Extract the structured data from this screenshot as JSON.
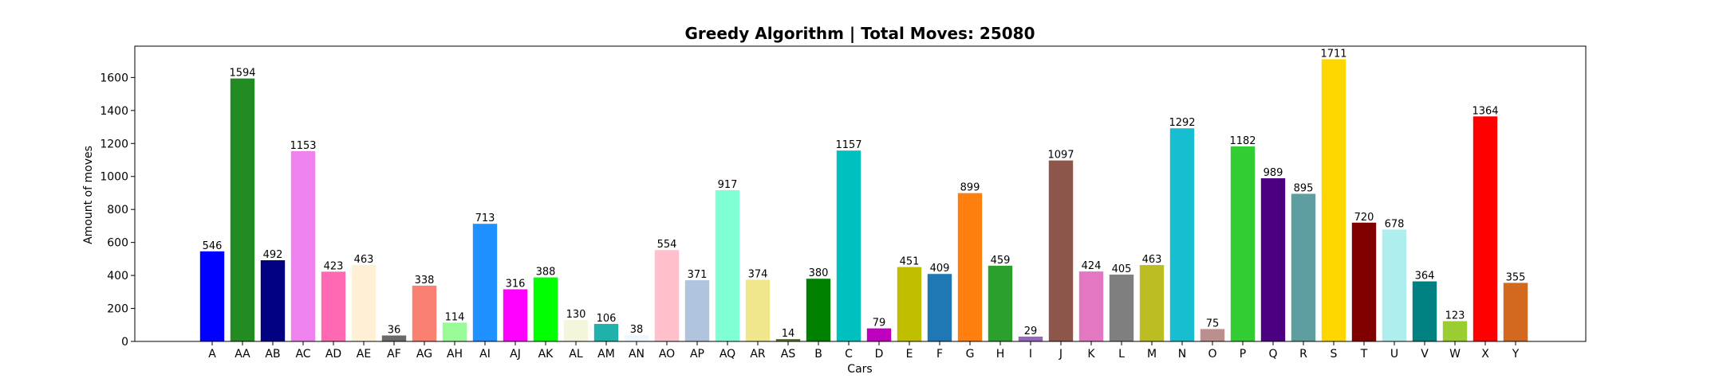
{
  "chart_data": {
    "type": "bar",
    "title": "Greedy Algorithm | Total Moves: 25080",
    "xlabel": "Cars",
    "ylabel": "Amount of moves",
    "ylim": [
      0,
      1790
    ],
    "yticks": [
      0,
      200,
      400,
      600,
      800,
      1000,
      1200,
      1400,
      1600
    ],
    "grid": false,
    "categories": [
      "A",
      "AA",
      "AB",
      "AC",
      "AD",
      "AE",
      "AF",
      "AG",
      "AH",
      "AI",
      "AJ",
      "AK",
      "AL",
      "AM",
      "AN",
      "AO",
      "AP",
      "AQ",
      "AR",
      "AS",
      "B",
      "C",
      "D",
      "E",
      "F",
      "G",
      "H",
      "I",
      "J",
      "K",
      "L",
      "M",
      "N",
      "O",
      "P",
      "Q",
      "R",
      "S",
      "T",
      "U",
      "V",
      "W",
      "X",
      "Y"
    ],
    "values": [
      546,
      1594,
      492,
      1153,
      423,
      463,
      36,
      338,
      114,
      713,
      316,
      388,
      130,
      106,
      38,
      554,
      371,
      917,
      374,
      14,
      380,
      1157,
      79,
      451,
      409,
      899,
      459,
      29,
      1097,
      424,
      405,
      463,
      1292,
      75,
      1182,
      989,
      895,
      1711,
      720,
      678,
      364,
      123,
      1364,
      355
    ],
    "colors": [
      "#0000ff",
      "#228b22",
      "#000080",
      "#ee82ee",
      "#ff69b4",
      "#ffefd5",
      "#696969",
      "#fa8072",
      "#98fb98",
      "#1e90ff",
      "#ff00ff",
      "#00ff00",
      "#f5f5dc",
      "#20b2aa",
      "#f0f8ff",
      "#ffc0cb",
      "#b0c4de",
      "#7fffd4",
      "#f0e68c",
      "#556b2f",
      "#008000",
      "#00bfbf",
      "#bf00bf",
      "#bfbf00",
      "#1f77b4",
      "#ff7f0e",
      "#2ca02c",
      "#9467bd",
      "#8c564b",
      "#e377c2",
      "#7f7f7f",
      "#bcbd22",
      "#17becf",
      "#bc8f8f",
      "#32cd32",
      "#4b0082",
      "#5f9ea0",
      "#ffd700",
      "#800000",
      "#afeeee",
      "#008080",
      "#9acd32",
      "#ff0000",
      "#d2691e"
    ]
  }
}
